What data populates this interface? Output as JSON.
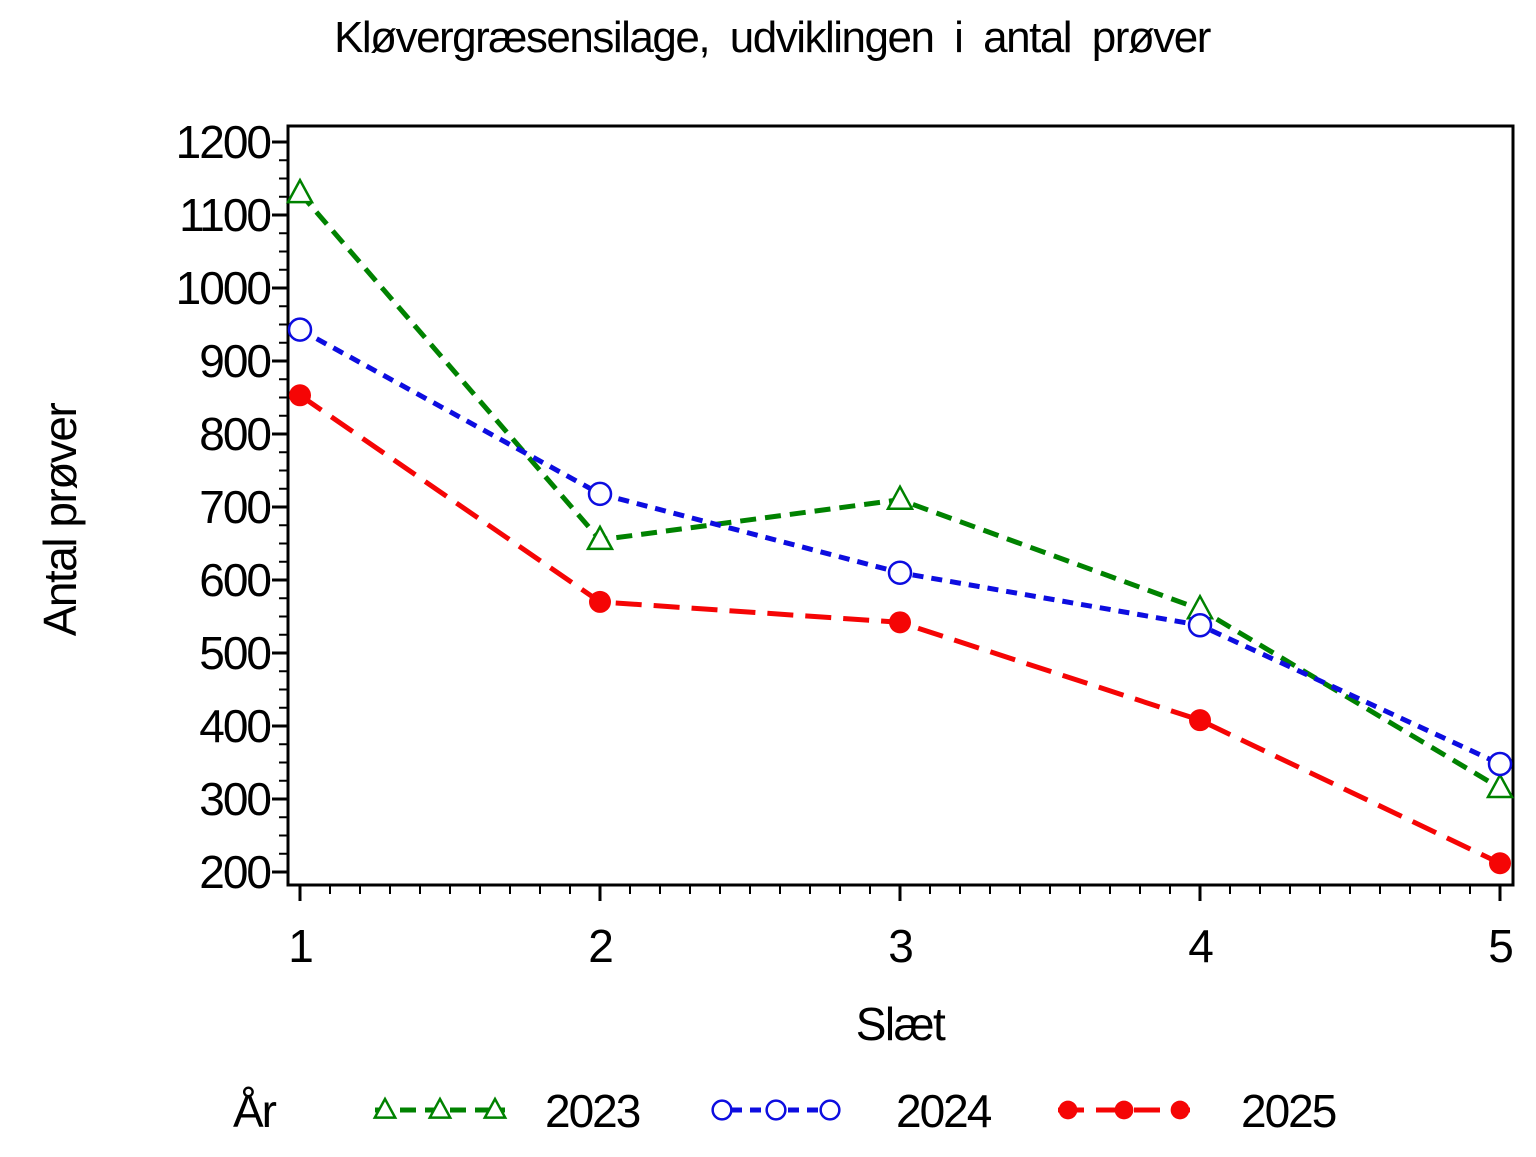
{
  "title": "Kløvergræsensilage, udviklingen i antal prøver",
  "chart_data": {
    "type": "line",
    "title": "Kløvergræsensilage, udviklingen i antal prøver",
    "xlabel": "Slæt",
    "ylabel": "Antal prøver",
    "x": [
      1,
      2,
      3,
      4,
      5
    ],
    "xlim": [
      1,
      5
    ],
    "ylim": [
      200,
      1200
    ],
    "y_major_ticks": [
      200,
      300,
      400,
      500,
      600,
      700,
      800,
      900,
      1000,
      1100,
      1200
    ],
    "y_minor_step": 25,
    "x_major_ticks": [
      1,
      2,
      3,
      4,
      5
    ],
    "x_minor_step": 0.1,
    "grid": "off",
    "legend_position": "bottom",
    "legend_title": "År",
    "series": [
      {
        "name": "2023",
        "color": "#008200",
        "marker": "triangle-open",
        "dash": "16 9",
        "values": [
          1130,
          655,
          710,
          560,
          315
        ]
      },
      {
        "name": "2024",
        "color": "#0d0de0",
        "marker": "circle-open",
        "dash": "11 8",
        "values": [
          943,
          718,
          610,
          538,
          348
        ]
      },
      {
        "name": "2025",
        "color": "#f50505",
        "marker": "circle-filled",
        "dash": "26 12",
        "values": [
          853,
          570,
          542,
          408,
          212
        ]
      }
    ]
  }
}
